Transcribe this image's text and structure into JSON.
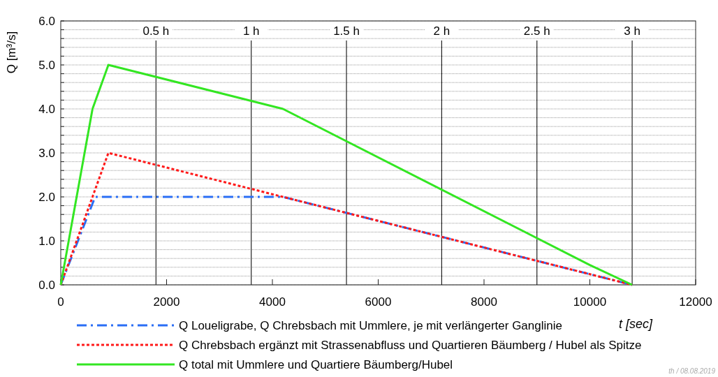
{
  "chart_data": {
    "type": "line",
    "xlabel": "t [sec]",
    "ylabel": "Q [m³/s]",
    "xlim": [
      0,
      12000
    ],
    "xticks": [
      0,
      2000,
      4000,
      6000,
      8000,
      10000,
      12000
    ],
    "ylim": [
      0,
      6
    ],
    "yticks": [
      {
        "value": 0,
        "label": "0.0"
      },
      {
        "value": 0.2,
        "label": null
      },
      {
        "value": 0.4,
        "label": null
      },
      {
        "value": 0.6,
        "label": null
      },
      {
        "value": 0.8,
        "label": null
      },
      {
        "value": 1,
        "label": "1.0"
      },
      {
        "value": 1.2,
        "label": null
      },
      {
        "value": 1.4,
        "label": null
      },
      {
        "value": 1.6,
        "label": null
      },
      {
        "value": 1.8,
        "label": null
      },
      {
        "value": 2,
        "label": "2.0"
      },
      {
        "value": 2.2,
        "label": null
      },
      {
        "value": 2.4,
        "label": null
      },
      {
        "value": 2.6,
        "label": null
      },
      {
        "value": 2.8,
        "label": null
      },
      {
        "value": 3,
        "label": "3.0"
      },
      {
        "value": 3.2,
        "label": null
      },
      {
        "value": 3.4,
        "label": null
      },
      {
        "value": 3.6,
        "label": null
      },
      {
        "value": 3.8,
        "label": null
      },
      {
        "value": 4,
        "label": "4.0"
      },
      {
        "value": 4.2,
        "label": null
      },
      {
        "value": 4.4,
        "label": null
      },
      {
        "value": 4.6,
        "label": null
      },
      {
        "value": 4.8,
        "label": null
      },
      {
        "value": 5,
        "label": "5.0"
      },
      {
        "value": 5.2,
        "label": null
      },
      {
        "value": 5.4,
        "label": null
      },
      {
        "value": 5.6,
        "label": null
      },
      {
        "value": 5.8,
        "label": null
      },
      {
        "value": 6,
        "label": "6.0"
      }
    ],
    "grid": "y",
    "legend": "bottom",
    "series": [
      {
        "name": "Q Loueligrabe, Q Chrebsbach mit Ummlere, je mit verlängerter Ganglinie",
        "color": "#2a6ef5",
        "line_style": "dashed",
        "x": [
          0,
          650,
          4200,
          10800
        ],
        "values": [
          0,
          2.0,
          2.0,
          0
        ]
      },
      {
        "name": "Q Chrebsbach ergänzt mit Strassenabfluss und Quartieren Bäumberg / Hubel als Spitze",
        "color": "#ff1a1a",
        "line_style": "dotted",
        "x": [
          0,
          900,
          4200,
          10800
        ],
        "values": [
          0,
          3.0,
          2.0,
          0
        ]
      },
      {
        "name": "Q total mit Ummlere und Quartiere Bäumberg/Hubel",
        "color": "#33e622",
        "line_style": "solid",
        "x": [
          0,
          600,
          900,
          4200,
          10000,
          10800
        ],
        "values": [
          0,
          4.0,
          5.0,
          4.0,
          0.45,
          0
        ]
      }
    ],
    "ref_lines": [
      {
        "axis": "x",
        "value": 1800,
        "label": "0.5 h"
      },
      {
        "axis": "x",
        "value": 3600,
        "label": "1 h"
      },
      {
        "axis": "x",
        "value": 5400,
        "label": "1.5 h"
      },
      {
        "axis": "x",
        "value": 7200,
        "label": "2 h"
      },
      {
        "axis": "x",
        "value": 9000,
        "label": "2.5 h"
      },
      {
        "axis": "x",
        "value": 10800,
        "label": "3 h"
      }
    ],
    "annotations": [
      "th / 08.08.2019"
    ]
  }
}
